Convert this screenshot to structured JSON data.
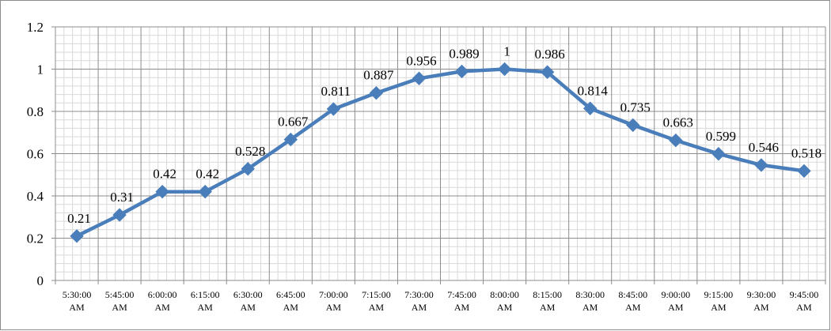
{
  "chart_data": {
    "type": "line",
    "title": "",
    "xlabel": "",
    "ylabel": "",
    "x": [
      "5:30:00 AM",
      "5:45:00 AM",
      "6:00:00 AM",
      "6:15:00 AM",
      "6:30:00 AM",
      "6:45:00 AM",
      "7:00:00 AM",
      "7:15:00 AM",
      "7:30:00 AM",
      "7:45:00 AM",
      "8:00:00 AM",
      "8:15:00 AM",
      "8:30:00 AM",
      "8:45:00 AM",
      "9:00:00 AM",
      "9:15:00 AM",
      "9:30:00 AM",
      "9:45:00 AM"
    ],
    "series": [
      {
        "values": [
          0.21,
          0.31,
          0.42,
          0.42,
          0.528,
          0.667,
          0.811,
          0.887,
          0.956,
          0.989,
          1,
          0.986,
          0.814,
          0.735,
          0.663,
          0.599,
          0.546,
          0.518
        ],
        "labels": [
          "0.21",
          "0.31",
          "0.42",
          "0.42",
          "0.528",
          "0.667",
          "0.811",
          "0.887",
          "0.956",
          "0.989",
          "1",
          "0.986",
          "0.814",
          "0.735",
          "0.663",
          "0.599",
          "0.546",
          "0.518"
        ]
      }
    ],
    "ylim": [
      0,
      1.2
    ],
    "yticks": [
      "0",
      "0.2",
      "0.4",
      "0.6",
      "0.8",
      "1",
      "1.2"
    ],
    "grid": true,
    "marker": "diamond",
    "legend": "none",
    "colors": {
      "line": "#4a7ebb",
      "marker": "#4a7ebb",
      "major_grid": "#8c8c8c",
      "minor_grid": "#d9d9d9",
      "axis": "#8c8c8c"
    }
  }
}
